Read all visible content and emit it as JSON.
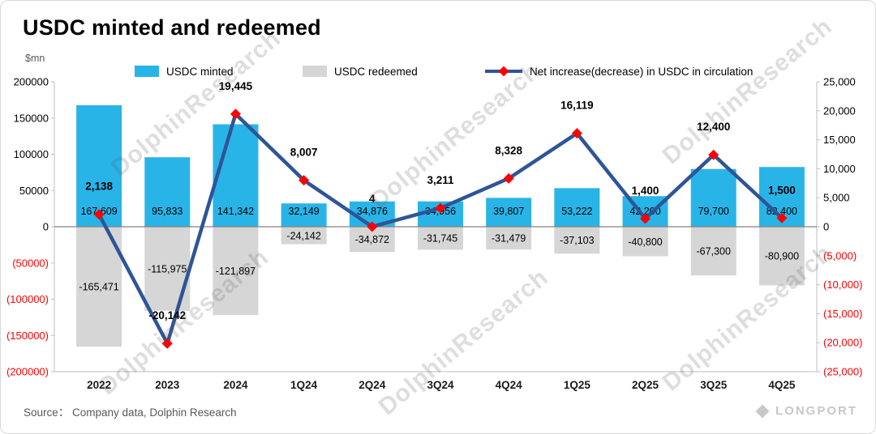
{
  "title": "USDC minted and redeemed",
  "unit_label": "$mn",
  "source": "Source：  Company data, Dolphin Research",
  "watermark_text": "DolphinResearch",
  "brand": "LONGPORT",
  "legend": {
    "minted": "USDC minted",
    "redeemed": "USDC redeemed",
    "net": "Net increase(decrease) in USDC in circulation"
  },
  "colors": {
    "minted": "#29B4E8",
    "redeemed": "#D6D6D6",
    "net_line": "#2E5596",
    "marker": "#FF0000",
    "negative_tick": "#FF0000"
  },
  "chart_data": {
    "type": "combo-bar-line",
    "categories": [
      "2022",
      "2023",
      "2024",
      "1Q24",
      "2Q24",
      "3Q24",
      "4Q24",
      "1Q25",
      "2Q25",
      "3Q25",
      "4Q25"
    ],
    "series": [
      {
        "name": "USDC minted",
        "type": "bar",
        "axis": "left",
        "values": [
          167609,
          95833,
          141342,
          32149,
          34876,
          34956,
          39807,
          53222,
          42200,
          79700,
          82400
        ],
        "labels": [
          "167,609",
          "95,833",
          "141,342",
          "32,149",
          "34,876",
          "34,956",
          "39,807",
          "53,222",
          "42,200",
          "79,700",
          "82,400"
        ]
      },
      {
        "name": "USDC redeemed",
        "type": "bar",
        "axis": "left",
        "values": [
          -165471,
          -115975,
          -121897,
          -24142,
          -34872,
          -31745,
          -31479,
          -37103,
          -40800,
          -67300,
          -80900
        ],
        "labels": [
          "-165,471",
          "-115,975",
          "-121,897",
          "-24,142",
          "-34,872",
          "-31,745",
          "-31,479",
          "-37,103",
          "-40,800",
          "-67,300",
          "-80,900"
        ]
      },
      {
        "name": "Net increase(decrease) in USDC in circulation",
        "type": "line",
        "axis": "right",
        "values": [
          2138,
          -20142,
          19445,
          8007,
          4,
          3211,
          8328,
          16119,
          1400,
          12400,
          1500
        ],
        "labels": [
          "2,138",
          "-20,142",
          "19,445",
          "8,007",
          "4",
          "3,211",
          "8,328",
          "16,119",
          "1,400",
          "12,400",
          "1,500"
        ]
      }
    ],
    "left_axis": {
      "min": -200000,
      "max": 200000,
      "ticks": [
        {
          "value": 200000,
          "label": "200000"
        },
        {
          "value": 150000,
          "label": "150000"
        },
        {
          "value": 100000,
          "label": "100000"
        },
        {
          "value": 50000,
          "label": "50000"
        },
        {
          "value": 0,
          "label": "0"
        },
        {
          "value": -50000,
          "label": "(50000)"
        },
        {
          "value": -100000,
          "label": "(100000)"
        },
        {
          "value": -150000,
          "label": "(150000)"
        },
        {
          "value": -200000,
          "label": "(200000)"
        }
      ]
    },
    "right_axis": {
      "min": -25000,
      "max": 25000,
      "ticks": [
        {
          "value": 25000,
          "label": "25,000"
        },
        {
          "value": 20000,
          "label": "20,000"
        },
        {
          "value": 15000,
          "label": "15,000"
        },
        {
          "value": 10000,
          "label": "10,000"
        },
        {
          "value": 5000,
          "label": "5,000"
        },
        {
          "value": 0,
          "label": "0"
        },
        {
          "value": -5000,
          "label": "(5,000)"
        },
        {
          "value": -10000,
          "label": "(10,000)"
        },
        {
          "value": -15000,
          "label": "(15,000)"
        },
        {
          "value": -20000,
          "label": "(20,000)"
        },
        {
          "value": -25000,
          "label": "(25,000)"
        }
      ]
    },
    "grid": false,
    "legend_position": "top"
  }
}
